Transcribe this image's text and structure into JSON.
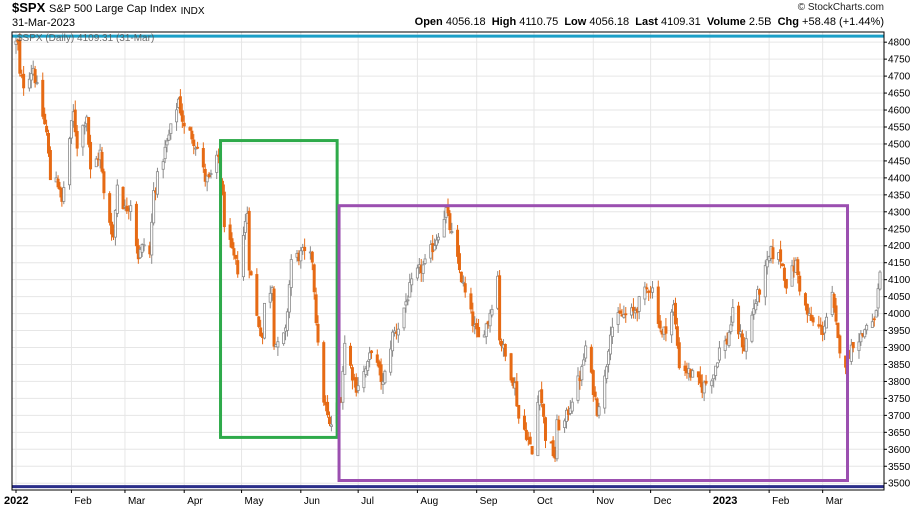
{
  "header": {
    "symbol": "$SPX",
    "name": "S&P 500 Large Cap Index",
    "exchange": "INDX",
    "date": "31-Mar-2023",
    "credit": "© StockCharts.com",
    "quote": {
      "open_label": "Open",
      "open": "4056.18",
      "high_label": "High",
      "high": "4110.75",
      "low_label": "Low",
      "low": "4056.18",
      "last_label": "Last",
      "last": "4109.31",
      "volume_label": "Volume",
      "volume": "2.5B",
      "chg_label": "Chg",
      "chg": "+58.48 (+1.44%)"
    }
  },
  "chart_data": {
    "type": "candlestick",
    "legend_text": "$SPX (Daily) 4109.31 (31-Mar)",
    "y_axis": {
      "side": "right",
      "ylim": [
        3480,
        4830
      ],
      "ticks": [
        3500,
        3550,
        3600,
        3650,
        3700,
        3750,
        3800,
        3850,
        3900,
        3950,
        4000,
        4050,
        4100,
        4150,
        4200,
        4250,
        4300,
        4350,
        4400,
        4450,
        4500,
        4550,
        4600,
        4650,
        4700,
        4750,
        4800
      ]
    },
    "x_axis": {
      "range": [
        "2022-01-03",
        "2023-03-31"
      ],
      "labels": [
        "2022",
        "Feb",
        "Mar",
        "Apr",
        "May",
        "Jun",
        "Jul",
        "Aug",
        "Sep",
        "Oct",
        "Nov",
        "Dec",
        "2023",
        "Feb",
        "Mar"
      ],
      "bold_labels": [
        "2022",
        "2023"
      ]
    },
    "grid": true,
    "colors": {
      "up": "#8a8a8a",
      "down": "#e66a14",
      "green_box": "#2eaa4a",
      "purple_box": "#9b4fb0",
      "cyan_line": "#1c9fc7",
      "navy_line": "#2b2f8a",
      "grid": "#e6e6e6"
    },
    "price_path": [
      [
        "2022-01-03",
        4797
      ],
      [
        "2022-01-04",
        4793
      ],
      [
        "2022-01-05",
        4700
      ],
      [
        "2022-01-07",
        4677
      ],
      [
        "2022-01-12",
        4726
      ],
      [
        "2022-01-14",
        4662
      ],
      [
        "2022-01-19",
        4532
      ],
      [
        "2022-01-21",
        4398
      ],
      [
        "2022-01-24",
        4410
      ],
      [
        "2022-01-27",
        4326
      ],
      [
        "2022-01-31",
        4516
      ],
      [
        "2022-02-02",
        4589
      ],
      [
        "2022-02-04",
        4500
      ],
      [
        "2022-02-09",
        4587
      ],
      [
        "2022-02-11",
        4418
      ],
      [
        "2022-02-16",
        4475
      ],
      [
        "2022-02-18",
        4349
      ],
      [
        "2022-02-23",
        4225
      ],
      [
        "2022-02-25",
        4385
      ],
      [
        "2022-03-01",
        4306
      ],
      [
        "2022-03-04",
        4329
      ],
      [
        "2022-03-08",
        4170
      ],
      [
        "2022-03-11",
        4204
      ],
      [
        "2022-03-14",
        4173
      ],
      [
        "2022-03-16",
        4358
      ],
      [
        "2022-03-21",
        4461
      ],
      [
        "2022-03-25",
        4543
      ],
      [
        "2022-03-29",
        4631
      ],
      [
        "2022-04-01",
        4545
      ],
      [
        "2022-04-05",
        4525
      ],
      [
        "2022-04-08",
        4488
      ],
      [
        "2022-04-12",
        4397
      ],
      [
        "2022-04-14",
        4392
      ],
      [
        "2022-04-19",
        4462
      ],
      [
        "2022-04-22",
        4272
      ],
      [
        "2022-04-26",
        4175
      ],
      [
        "2022-04-29",
        4132
      ],
      [
        "2022-05-04",
        4300
      ],
      [
        "2022-05-05",
        4147
      ],
      [
        "2022-05-09",
        3991
      ],
      [
        "2022-05-12",
        3930
      ],
      [
        "2022-05-13",
        4023
      ],
      [
        "2022-05-17",
        4088
      ],
      [
        "2022-05-18",
        3923
      ],
      [
        "2022-05-20",
        3901
      ],
      [
        "2022-05-24",
        3941
      ],
      [
        "2022-05-27",
        4158
      ],
      [
        "2022-06-02",
        4176
      ],
      [
        "2022-06-07",
        4160
      ],
      [
        "2022-06-10",
        3900
      ],
      [
        "2022-06-13",
        3750
      ],
      [
        "2022-06-16",
        3666
      ],
      [
        "2022-06-17",
        3674
      ],
      [
        "2022-06-22",
        3759
      ],
      [
        "2022-06-24",
        3911
      ],
      [
        "2022-06-28",
        3821
      ],
      [
        "2022-06-30",
        3785
      ],
      [
        "2022-07-06",
        3845
      ],
      [
        "2022-07-08",
        3899
      ],
      [
        "2022-07-14",
        3790
      ],
      [
        "2022-07-19",
        3937
      ],
      [
        "2022-07-22",
        3961
      ],
      [
        "2022-07-28",
        4072
      ],
      [
        "2022-08-01",
        4119
      ],
      [
        "2022-08-05",
        4145
      ],
      [
        "2022-08-10",
        4210
      ],
      [
        "2022-08-16",
        4305
      ],
      [
        "2022-08-19",
        4228
      ],
      [
        "2022-08-23",
        4128
      ],
      [
        "2022-08-26",
        4057
      ],
      [
        "2022-08-31",
        3955
      ],
      [
        "2022-09-02",
        3924
      ],
      [
        "2022-09-07",
        3979
      ],
      [
        "2022-09-12",
        4110
      ],
      [
        "2022-09-13",
        3932
      ],
      [
        "2022-09-16",
        3873
      ],
      [
        "2022-09-21",
        3789
      ],
      [
        "2022-09-23",
        3693
      ],
      [
        "2022-09-27",
        3647
      ],
      [
        "2022-09-30",
        3585
      ],
      [
        "2022-10-04",
        3791
      ],
      [
        "2022-10-07",
        3639
      ],
      [
        "2022-10-12",
        3577
      ],
      [
        "2022-10-13",
        3669
      ],
      [
        "2022-10-17",
        3677
      ],
      [
        "2022-10-21",
        3752
      ],
      [
        "2022-10-26",
        3830
      ],
      [
        "2022-10-28",
        3901
      ],
      [
        "2022-11-03",
        3719
      ],
      [
        "2022-11-07",
        3806
      ],
      [
        "2022-11-10",
        3956
      ],
      [
        "2022-11-15",
        3991
      ],
      [
        "2022-11-22",
        4003
      ],
      [
        "2022-11-30",
        4080
      ],
      [
        "2022-12-02",
        4071
      ],
      [
        "2022-12-07",
        3933
      ],
      [
        "2022-12-13",
        4019
      ],
      [
        "2022-12-16",
        3852
      ],
      [
        "2022-12-22",
        3822
      ],
      [
        "2022-12-28",
        3783
      ],
      [
        "2023-01-03",
        3824
      ],
      [
        "2023-01-06",
        3895
      ],
      [
        "2023-01-10",
        3919
      ],
      [
        "2023-01-13",
        3999
      ],
      [
        "2023-01-19",
        3898
      ],
      [
        "2023-01-24",
        4017
      ],
      [
        "2023-01-27",
        4070
      ],
      [
        "2023-02-02",
        4179
      ],
      [
        "2023-02-07",
        4164
      ],
      [
        "2023-02-10",
        4090
      ],
      [
        "2023-02-15",
        4147
      ],
      [
        "2023-02-17",
        4079
      ],
      [
        "2023-02-21",
        3997
      ],
      [
        "2023-02-24",
        3970
      ],
      [
        "2023-03-01",
        3951
      ],
      [
        "2023-03-06",
        4048
      ],
      [
        "2023-03-09",
        3918
      ],
      [
        "2023-03-13",
        3855
      ],
      [
        "2023-03-17",
        3917
      ],
      [
        "2023-03-22",
        3937
      ],
      [
        "2023-03-24",
        3970
      ],
      [
        "2023-03-28",
        3971
      ],
      [
        "2023-03-31",
        4109
      ]
    ],
    "annotations": [
      {
        "name": "green-rectangle",
        "type": "box",
        "x": [
          "2022-04-20",
          "2022-06-20"
        ],
        "y": [
          3635,
          4510
        ]
      },
      {
        "name": "purple-rectangle",
        "type": "box",
        "x": [
          "2022-06-21",
          "2023-03-14"
        ],
        "y": [
          3508,
          4318
        ]
      },
      {
        "name": "cyan-horizontal-line",
        "type": "hline",
        "y": 4818
      },
      {
        "name": "navy-horizontal-line",
        "type": "hline",
        "y": 3490
      }
    ]
  }
}
